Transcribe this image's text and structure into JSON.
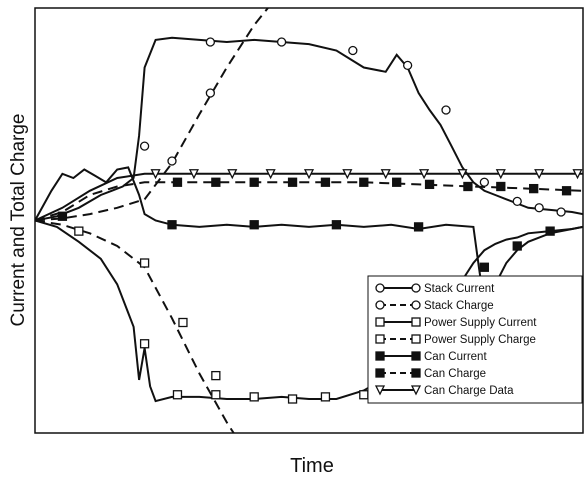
{
  "chart_data": {
    "type": "line",
    "title": "",
    "xlabel": "Time",
    "ylabel": "Current and Total Charge",
    "xlim": [
      0,
      100
    ],
    "ylim": [
      -100,
      100
    ],
    "grid": false,
    "legend_position": "bottom-right",
    "series": [
      {
        "name": "Stack Current",
        "color": "#111111",
        "line_style": "solid",
        "marker": "circle",
        "x": [
          0,
          4,
          8,
          12,
          14,
          16,
          18,
          19,
          20,
          22,
          25,
          30,
          35,
          40,
          45,
          50,
          55,
          60,
          64,
          66,
          68,
          70,
          72,
          74,
          76,
          78,
          80,
          82,
          84,
          86,
          88,
          90,
          94,
          98,
          100
        ],
        "y": [
          0,
          2,
          6,
          12,
          14,
          16,
          20,
          40,
          72,
          85,
          86,
          85,
          84,
          85,
          84,
          83,
          80,
          72,
          70,
          78,
          72,
          60,
          52,
          45,
          35,
          25,
          18,
          14,
          12,
          10,
          8,
          6,
          5,
          4,
          3
        ],
        "markers_x": [
          20,
          32,
          45,
          58,
          68,
          75,
          82,
          88,
          92,
          96
        ],
        "markers_y": [
          35,
          84,
          84,
          80,
          73,
          52,
          18,
          9,
          6,
          4
        ]
      },
      {
        "name": "Stack Charge",
        "color": "#111111",
        "line_style": "dashed",
        "marker": "circle",
        "x": [
          0,
          5,
          10,
          15,
          20,
          25,
          30,
          35,
          40,
          45
        ],
        "y": [
          0,
          1,
          3,
          6,
          10,
          27,
          50,
          72,
          92,
          108
        ],
        "markers_x": [
          25,
          32
        ],
        "markers_y": [
          28,
          60
        ]
      },
      {
        "name": "Power Supply Current",
        "color": "#111111",
        "line_style": "solid",
        "marker": "square",
        "x": [
          0,
          4,
          8,
          12,
          15,
          18,
          19,
          20,
          21,
          22,
          25,
          30,
          35,
          40,
          45,
          50,
          55,
          60,
          64,
          66,
          68,
          70,
          72,
          74,
          76,
          78,
          80,
          82,
          84,
          86,
          88,
          90,
          94,
          98,
          100
        ],
        "y": [
          0,
          -3,
          -10,
          -18,
          -30,
          -50,
          -75,
          -60,
          -78,
          -85,
          -83,
          -83,
          -84,
          -84,
          -83,
          -84,
          -84,
          -80,
          -74,
          -76,
          -72,
          -60,
          -50,
          -44,
          -36,
          -28,
          -20,
          -14,
          -11,
          -9,
          -8,
          -6,
          -5,
          -4,
          -3
        ],
        "markers_x": [
          20,
          26,
          33,
          40,
          47,
          53,
          60,
          66
        ],
        "markers_y": [
          -58,
          -82,
          -82,
          -83,
          -84,
          -83,
          -82,
          -76
        ]
      },
      {
        "name": "Power Supply Charge",
        "color": "#111111",
        "line_style": "dashed",
        "marker": "square",
        "x": [
          0,
          5,
          10,
          15,
          20,
          25,
          30,
          35,
          40
        ],
        "y": [
          0,
          -2,
          -6,
          -12,
          -22,
          -46,
          -72,
          -95,
          -115
        ],
        "markers_x": [
          8,
          20,
          27,
          33
        ],
        "markers_y": [
          -5,
          -20,
          -48,
          -73
        ]
      },
      {
        "name": "Can Current",
        "color": "#111111",
        "line_style": "solid",
        "marker": "filled-square",
        "x": [
          0,
          3,
          5,
          7,
          9,
          11,
          13,
          15,
          17,
          19,
          20,
          22,
          25,
          30,
          35,
          40,
          45,
          50,
          55,
          60,
          65,
          70,
          75,
          80,
          81,
          82,
          84,
          86,
          88,
          90,
          94,
          98,
          100
        ],
        "y": [
          0,
          14,
          22,
          20,
          24,
          21,
          18,
          24,
          25,
          12,
          3,
          0,
          -2,
          -3,
          -2,
          -3,
          -2,
          -3,
          -2,
          -3,
          -2,
          -4,
          -2,
          -3,
          -22,
          -40,
          -30,
          -20,
          -14,
          -10,
          -6,
          -4,
          -3
        ],
        "markers_x": [
          5,
          25,
          40,
          55,
          70,
          82,
          88,
          94
        ],
        "markers_y": [
          2,
          -2,
          -2,
          -2,
          -3,
          -22,
          -12,
          -5
        ]
      },
      {
        "name": "Can Charge",
        "color": "#111111",
        "line_style": "dashed",
        "marker": "filled-square",
        "x": [
          0,
          5,
          10,
          15,
          20,
          25,
          30,
          40,
          50,
          60,
          70,
          80,
          90,
          100
        ],
        "y": [
          0,
          4,
          12,
          16,
          18,
          18,
          18,
          18,
          18,
          18,
          17,
          16,
          15,
          14
        ],
        "markers_x": [
          26,
          33,
          40,
          47,
          53,
          60,
          66,
          72,
          79,
          85,
          91,
          97
        ],
        "markers_y": [
          18,
          18,
          18,
          18,
          18,
          18,
          18,
          17,
          16,
          16,
          15,
          14
        ]
      },
      {
        "name": "Can Charge Data",
        "color": "#111111",
        "line_style": "solid",
        "marker": "triangle-down",
        "x": [
          0,
          5,
          10,
          15,
          20,
          25,
          30,
          40,
          50,
          60,
          70,
          80,
          90,
          100
        ],
        "y": [
          0,
          6,
          14,
          20,
          22,
          22,
          22,
          22,
          22,
          22,
          22,
          22,
          22,
          22
        ],
        "markers_x": [
          22,
          29,
          36,
          43,
          50,
          57,
          64,
          71,
          78,
          85,
          92,
          99
        ],
        "markers_y": [
          22,
          22,
          22,
          22,
          22,
          22,
          22,
          22,
          22,
          22,
          22,
          22
        ]
      }
    ]
  }
}
